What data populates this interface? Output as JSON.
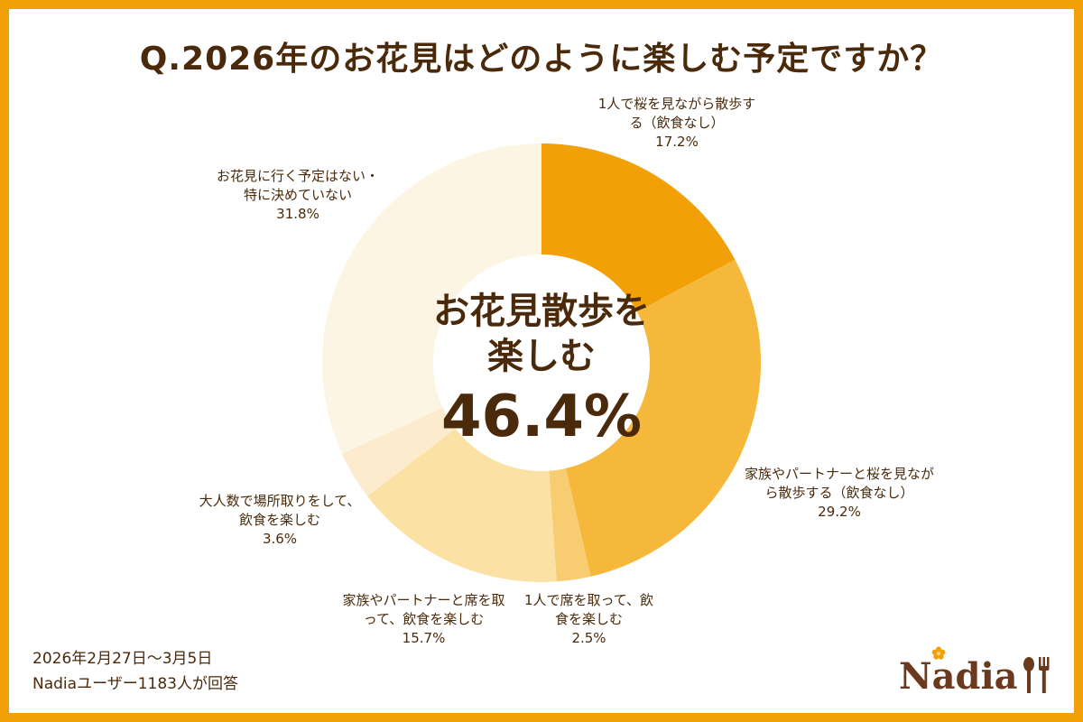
{
  "title": "Q.2026年のお花見はどのように楽しむ予定ですか？",
  "center": {
    "line1": "お花見散歩を",
    "line2": "楽しむ",
    "value": "46.4%"
  },
  "footer": {
    "period": "2026年2月27日〜3月5日",
    "respondents": "Nadiaユーザー1183人が回答"
  },
  "logo": "Nadia",
  "chart_data": {
    "type": "pie",
    "donut": true,
    "categories": [
      "1人で桜を見ながら散歩する（飲食なし）",
      "家族やパートナーと桜を見ながら散歩する（飲食なし）",
      "1人で席を取って、飲食を楽しむ",
      "家族やパートナーと席を取って、飲食を楽しむ",
      "大人数で場所取りをして、飲食を楽しむ",
      "お花見に行く予定はない・特に決めていない"
    ],
    "values": [
      17.2,
      29.2,
      2.5,
      15.7,
      3.6,
      31.8
    ],
    "value_labels": [
      "17.2%",
      "29.2%",
      "2.5%",
      "15.7%",
      "3.6%",
      "31.8%"
    ],
    "colors": [
      "#F2A007",
      "#F5B83A",
      "#F8CD72",
      "#FBE1A4",
      "#FCEBCD",
      "#FDF5E4"
    ],
    "start": "12 o'clock, clockwise"
  }
}
